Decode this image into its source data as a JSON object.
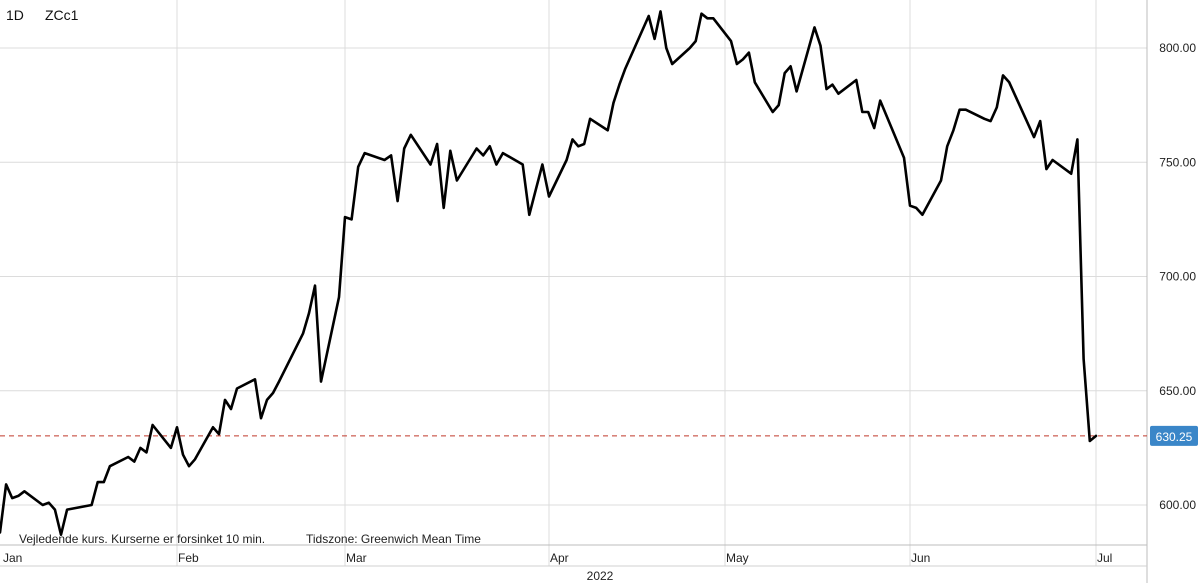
{
  "header": {
    "interval": "1D",
    "symbol": "ZCc1"
  },
  "footer": {
    "disclaimer": "Vejledende kurs. Kurserne er forsinket 10 min.",
    "timezone": "Tidszone: Greenwich Mean Time"
  },
  "colors": {
    "line": "#000000",
    "grid": "#dcdcdc",
    "last_price_line": "#c0392b",
    "last_price_badge": "#3a86c8",
    "axis_text": "#222222"
  },
  "chart_data": {
    "type": "line",
    "title": "",
    "xlabel": "",
    "ylabel": "",
    "ylim": [
      578,
      823
    ],
    "y_ticks": [
      600,
      650,
      700,
      750,
      800
    ],
    "y_tick_labels": [
      "600.00",
      "650.00",
      "700.00",
      "750.00",
      "800.00"
    ],
    "month_labels": [
      "Jan",
      "Feb",
      "Mar",
      "Apr",
      "May",
      "Jun",
      "Jul"
    ],
    "year_label": "2022",
    "grid": true,
    "y_axis_position": "right",
    "last_price": 630.25,
    "last_price_label": "630.25",
    "series": [
      {
        "x": [
          "2022-01-03",
          "2022-01-04",
          "2022-01-05",
          "2022-01-06",
          "2022-01-07",
          "2022-01-10",
          "2022-01-11",
          "2022-01-12",
          "2022-01-13",
          "2022-01-14",
          "2022-01-18",
          "2022-01-19",
          "2022-01-20",
          "2022-01-21",
          "2022-01-24",
          "2022-01-25",
          "2022-01-26",
          "2022-01-27",
          "2022-01-28",
          "2022-01-31",
          "2022-02-01",
          "2022-02-02",
          "2022-02-03",
          "2022-02-04",
          "2022-02-07",
          "2022-02-08",
          "2022-02-09",
          "2022-02-10",
          "2022-02-11",
          "2022-02-14",
          "2022-02-15",
          "2022-02-16",
          "2022-02-17",
          "2022-02-18",
          "2022-02-22",
          "2022-02-23",
          "2022-02-24",
          "2022-02-25",
          "2022-02-28",
          "2022-03-01",
          "2022-03-02",
          "2022-03-03",
          "2022-03-04",
          "2022-03-07",
          "2022-03-08",
          "2022-03-09",
          "2022-03-10",
          "2022-03-11",
          "2022-03-14",
          "2022-03-15",
          "2022-03-16",
          "2022-03-17",
          "2022-03-18",
          "2022-03-21",
          "2022-03-22",
          "2022-03-23",
          "2022-03-24",
          "2022-03-25",
          "2022-03-28",
          "2022-03-29",
          "2022-03-30",
          "2022-03-31",
          "2022-04-01",
          "2022-04-04",
          "2022-04-05",
          "2022-04-06",
          "2022-04-07",
          "2022-04-08",
          "2022-04-11",
          "2022-04-12",
          "2022-04-13",
          "2022-04-14",
          "2022-04-18",
          "2022-04-19",
          "2022-04-20",
          "2022-04-21",
          "2022-04-22",
          "2022-04-25",
          "2022-04-26",
          "2022-04-27",
          "2022-04-28",
          "2022-04-29",
          "2022-05-02",
          "2022-05-03",
          "2022-05-04",
          "2022-05-05",
          "2022-05-06",
          "2022-05-09",
          "2022-05-10",
          "2022-05-11",
          "2022-05-12",
          "2022-05-13",
          "2022-05-16",
          "2022-05-17",
          "2022-05-18",
          "2022-05-19",
          "2022-05-20",
          "2022-05-23",
          "2022-05-24",
          "2022-05-25",
          "2022-05-26",
          "2022-05-27",
          "2022-05-31",
          "2022-06-01",
          "2022-06-02",
          "2022-06-03",
          "2022-06-06",
          "2022-06-07",
          "2022-06-08",
          "2022-06-09",
          "2022-06-10",
          "2022-06-13",
          "2022-06-14",
          "2022-06-15",
          "2022-06-16",
          "2022-06-17",
          "2022-06-21",
          "2022-06-22",
          "2022-06-23",
          "2022-06-24",
          "2022-06-27",
          "2022-06-28",
          "2022-06-29",
          "2022-06-30",
          "2022-07-01"
        ],
        "values": [
          588,
          609,
          603,
          604,
          606,
          600,
          601,
          598,
          587,
          598,
          600,
          610,
          610,
          617,
          621,
          619,
          625,
          623,
          635,
          625,
          634,
          622,
          617,
          620,
          634,
          631,
          646,
          642,
          651,
          655,
          638,
          646,
          649,
          654,
          675,
          684,
          696,
          654,
          691,
          726,
          725,
          748,
          754,
          751,
          753,
          733,
          756,
          762,
          749,
          758,
          730,
          755,
          742,
          756,
          753,
          757,
          749,
          754,
          749,
          727,
          738,
          749,
          735,
          751,
          760,
          757,
          758,
          769,
          764,
          776,
          784,
          791,
          814,
          804,
          816,
          800,
          793,
          800,
          803,
          815,
          813,
          813,
          803,
          793,
          795,
          798,
          785,
          772,
          775,
          789,
          792,
          781,
          809,
          801,
          782,
          784,
          780,
          786,
          772,
          772,
          765,
          777,
          752,
          731,
          730,
          727,
          742,
          757,
          764,
          773,
          773,
          769,
          768,
          774,
          788,
          785,
          761,
          768,
          747,
          751,
          745,
          760,
          664,
          628,
          630.25
        ]
      }
    ]
  }
}
